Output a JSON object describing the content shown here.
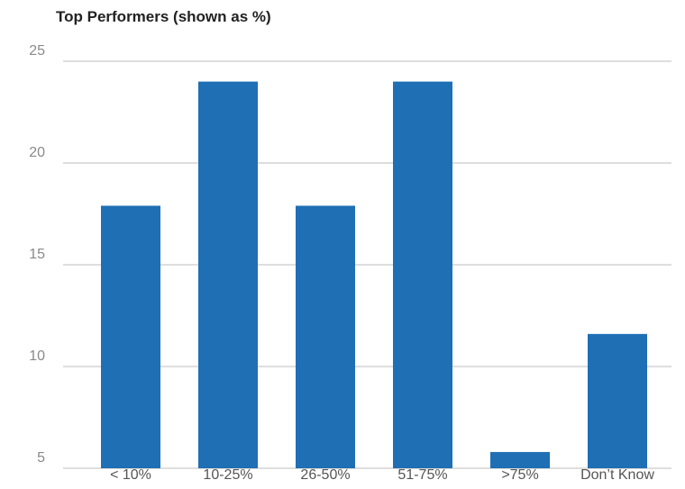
{
  "chart_data": {
    "type": "bar",
    "title": "Top Performers (shown as %)",
    "xlabel": "",
    "ylabel": "",
    "categories": [
      "< 10%",
      "10-25%",
      "26-50%",
      "51-75%",
      ">75%",
      "Don’t Know"
    ],
    "values": [
      17.9,
      24.0,
      17.9,
      24.0,
      5.8,
      11.6
    ],
    "ylim": [
      5,
      25
    ],
    "yticks": [
      5,
      10,
      15,
      20,
      25
    ],
    "grid": true,
    "legend": "none",
    "bar_color": "#1f6fb4"
  }
}
